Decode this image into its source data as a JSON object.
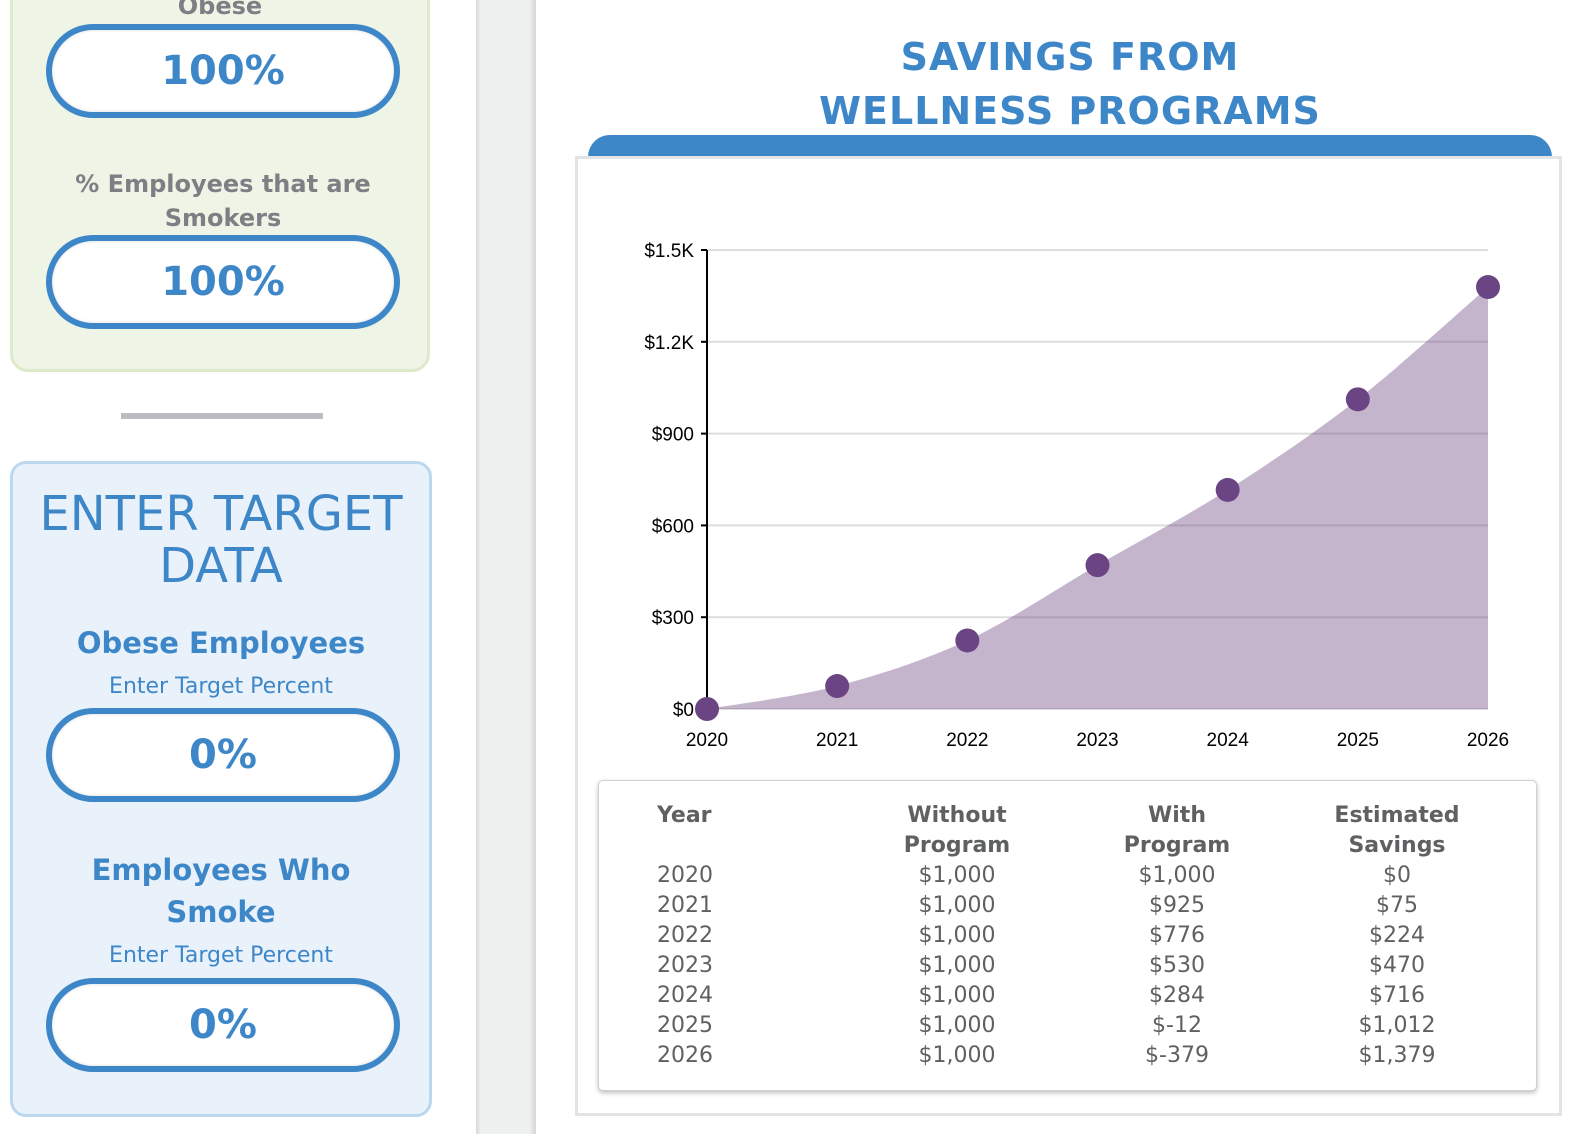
{
  "left_panel": {
    "current_data": {
      "obese_label_partial": "Obese",
      "obese_value": "100%",
      "smokers_label": "% Employees that are Smokers",
      "smokers_value": "100%"
    },
    "target_data": {
      "title": "ENTER TARGET DATA",
      "obese": {
        "label": "Obese Employees",
        "hint": "Enter Target Percent",
        "value": "0%"
      },
      "smokers": {
        "label": "Employees Who Smoke",
        "hint": "Enter Target Percent",
        "value": "0%"
      }
    }
  },
  "main": {
    "title_line1": "SAVINGS FROM",
    "title_line2": "WELLNESS PROGRAMS"
  },
  "colors": {
    "accent_blue": "#3d87c8",
    "series_purple": "#6b4583",
    "area_fill": "#c4b4cb"
  },
  "chart_data": {
    "type": "area",
    "title": "",
    "xlabel": "",
    "ylabel": "",
    "x": [
      "2020",
      "2021",
      "2022",
      "2023",
      "2024",
      "2025",
      "2026"
    ],
    "series": [
      {
        "name": "Estimated Savings",
        "values": [
          0,
          75,
          224,
          470,
          716,
          1012,
          1379
        ]
      }
    ],
    "ylim": [
      0,
      1500
    ],
    "yticks": [
      0,
      300,
      600,
      900,
      1200,
      1500
    ],
    "ytick_labels": [
      "$0",
      "$300",
      "$600",
      "$900",
      "$1.2K",
      "$1.5K"
    ],
    "grid": true,
    "legend": "none"
  },
  "table": {
    "headers": [
      [
        "Year",
        ""
      ],
      [
        "Without",
        "Program"
      ],
      [
        "With",
        "Program"
      ],
      [
        "Estimated",
        "Savings"
      ]
    ],
    "rows": [
      [
        "2020",
        "$1,000",
        "$1,000",
        "$0"
      ],
      [
        "2021",
        "$1,000",
        "$925",
        "$75"
      ],
      [
        "2022",
        "$1,000",
        "$776",
        "$224"
      ],
      [
        "2023",
        "$1,000",
        "$530",
        "$470"
      ],
      [
        "2024",
        "$1,000",
        "$284",
        "$716"
      ],
      [
        "2025",
        "$1,000",
        "$-12",
        "$1,012"
      ],
      [
        "2026",
        "$1,000",
        "$-379",
        "$1,379"
      ]
    ]
  }
}
